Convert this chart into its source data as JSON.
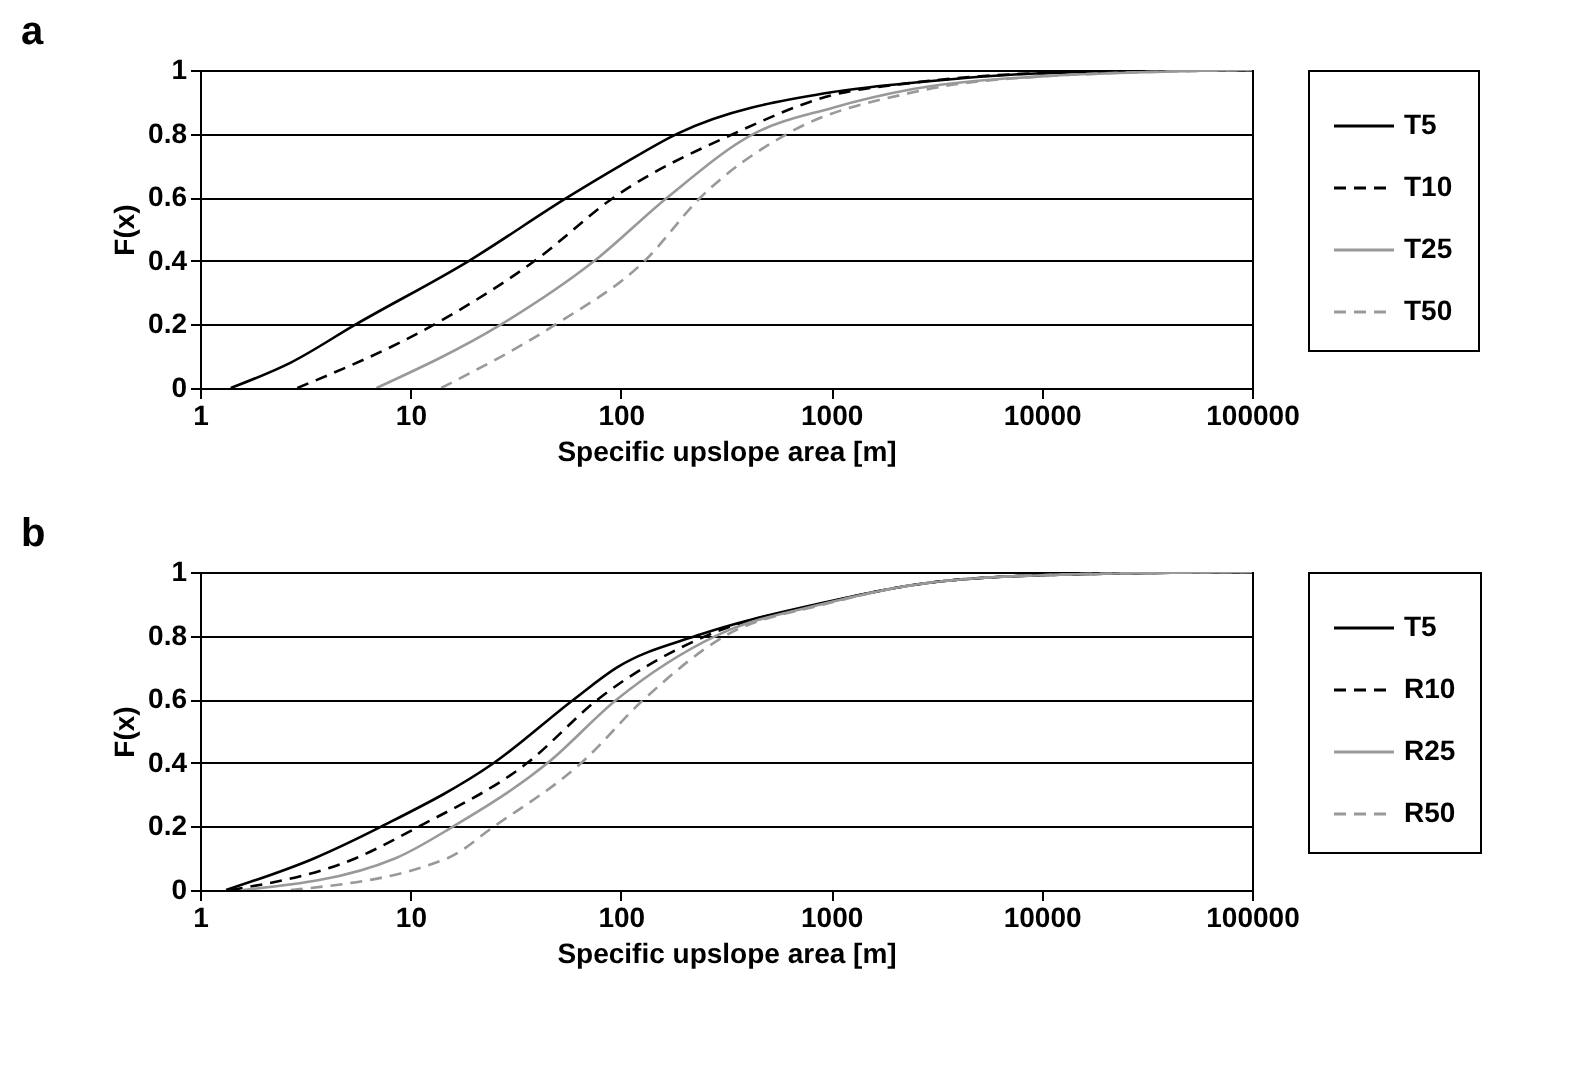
{
  "chart_data": [
    {
      "type": "line",
      "title": "a",
      "xlabel": "Specific upslope area [m]",
      "ylabel": "F(x)",
      "log": "x",
      "xlim": [
        1,
        100000
      ],
      "xticks": [
        1,
        10,
        100,
        1000,
        10000,
        100000
      ],
      "ylim": [
        0,
        1
      ],
      "yticks": [
        0,
        0.2,
        0.4,
        0.6,
        0.8,
        1
      ],
      "grid": "y",
      "legend": "right",
      "series": [
        {
          "name": "T5",
          "color": "#000000",
          "line_style": "solid",
          "x": [
            1.4,
            2.7,
            5.5,
            19,
            56,
            100,
            186,
            1000,
            2450,
            10000,
            100000
          ],
          "values": [
            0,
            0.08,
            0.2,
            0.4,
            0.6,
            0.7,
            0.8,
            0.93,
            0.96,
            0.99,
            1
          ]
        },
        {
          "name": "T10",
          "color": "#000000",
          "line_style": "dashed",
          "x": [
            2.9,
            13,
            39,
            93,
            345,
            1000,
            2450,
            10000,
            100000
          ],
          "values": [
            0,
            0.2,
            0.4,
            0.6,
            0.8,
            0.92,
            0.96,
            0.99,
            1
          ]
        },
        {
          "name": "T25",
          "color": "#999999",
          "line_style": "solid",
          "x": [
            6.9,
            27,
            75,
            167,
            430,
            1000,
            2450,
            10000,
            100000
          ],
          "values": [
            0,
            0.2,
            0.4,
            0.6,
            0.8,
            0.88,
            0.94,
            0.98,
            1
          ]
        },
        {
          "name": "T50",
          "color": "#999999",
          "line_style": "dashed",
          "x": [
            14,
            49,
            130,
            240,
            620,
            2450,
            10000,
            100000
          ],
          "values": [
            0,
            0.2,
            0.4,
            0.6,
            0.8,
            0.93,
            0.98,
            1
          ]
        }
      ]
    },
    {
      "type": "line",
      "title": "b",
      "xlabel": "Specific upslope area [m]",
      "ylabel": "F(x)",
      "log": "x",
      "xlim": [
        1,
        100000
      ],
      "xticks": [
        1,
        10,
        100,
        1000,
        10000,
        100000
      ],
      "ylim": [
        0,
        1
      ],
      "yticks": [
        0,
        0.2,
        0.4,
        0.6,
        0.8,
        1
      ],
      "grid": "y",
      "legend": "right",
      "series": [
        {
          "name": "T5",
          "color": "#000000",
          "line_style": "solid",
          "x": [
            1.33,
            3.5,
            7.3,
            25,
            60,
            96,
            230,
            870,
            2500,
            10000,
            100000
          ],
          "values": [
            0,
            0.1,
            0.2,
            0.4,
            0.6,
            0.7,
            0.8,
            0.9,
            0.96,
            0.99,
            1
          ]
        },
        {
          "name": "R10",
          "color": "#000000",
          "line_style": "dashed",
          "x": [
            1.4,
            5.5,
            11,
            36,
            78,
            256,
            900,
            2500,
            10000,
            100000
          ],
          "values": [
            0,
            0.1,
            0.2,
            0.4,
            0.6,
            0.8,
            0.9,
            0.96,
            0.99,
            1
          ]
        },
        {
          "name": "R25",
          "color": "#999999",
          "line_style": "solid",
          "x": [
            1.6,
            8.5,
            16,
            45,
            96,
            285,
            920,
            2500,
            10000,
            100000
          ],
          "values": [
            0,
            0.1,
            0.2,
            0.4,
            0.6,
            0.8,
            0.9,
            0.96,
            0.99,
            1
          ]
        },
        {
          "name": "R50",
          "color": "#999999",
          "line_style": "dashed",
          "x": [
            2.7,
            15,
            25,
            65,
            129,
            315,
            950,
            2500,
            10000,
            100000
          ],
          "values": [
            0,
            0.1,
            0.2,
            0.4,
            0.6,
            0.8,
            0.9,
            0.96,
            0.99,
            1
          ]
        }
      ]
    }
  ]
}
